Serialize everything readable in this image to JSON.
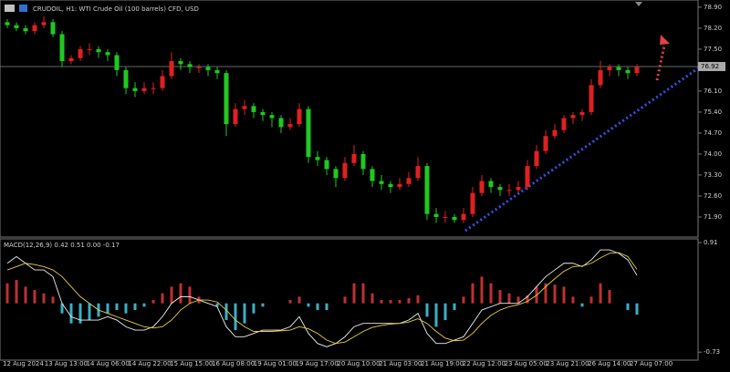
{
  "chart_data": {
    "type": "candlestick",
    "title": "CRUDOIL, H1: WTI Crude Oil (100 barrels) CFD, USD",
    "up_color": "#e02020",
    "down_color": "#20c820",
    "candles": [
      [
        78.4,
        78.5,
        78.2,
        78.3
      ],
      [
        78.3,
        78.4,
        78.1,
        78.2
      ],
      [
        78.2,
        78.3,
        78.0,
        78.1
      ],
      [
        78.1,
        78.4,
        78.0,
        78.3
      ],
      [
        78.3,
        78.6,
        78.2,
        78.4
      ],
      [
        78.4,
        78.5,
        77.9,
        78.0
      ],
      [
        78.0,
        78.1,
        76.9,
        77.1
      ],
      [
        77.1,
        77.3,
        77.0,
        77.2
      ],
      [
        77.2,
        77.6,
        77.1,
        77.5
      ],
      [
        77.5,
        77.7,
        77.3,
        77.5
      ],
      [
        77.5,
        77.6,
        77.2,
        77.4
      ],
      [
        77.4,
        77.5,
        77.1,
        77.3
      ],
      [
        77.3,
        77.4,
        76.6,
        76.8
      ],
      [
        76.8,
        76.9,
        76.0,
        76.2
      ],
      [
        76.2,
        76.4,
        75.9,
        76.1
      ],
      [
        76.1,
        76.4,
        76.0,
        76.2
      ],
      [
        76.2,
        76.4,
        76.0,
        76.2
      ],
      [
        76.2,
        76.8,
        76.1,
        76.6
      ],
      [
        76.6,
        77.4,
        76.5,
        77.1
      ],
      [
        77.1,
        77.2,
        76.8,
        77.0
      ],
      [
        77.0,
        77.1,
        76.7,
        76.9
      ],
      [
        76.9,
        77.0,
        76.7,
        76.9
      ],
      [
        76.9,
        77.0,
        76.6,
        76.8
      ],
      [
        76.8,
        76.9,
        76.5,
        76.7
      ],
      [
        76.7,
        76.8,
        74.6,
        75.0
      ],
      [
        75.0,
        75.7,
        74.9,
        75.5
      ],
      [
        75.5,
        75.8,
        75.3,
        75.6
      ],
      [
        75.6,
        75.7,
        75.2,
        75.4
      ],
      [
        75.4,
        75.5,
        75.1,
        75.3
      ],
      [
        75.3,
        75.4,
        74.9,
        75.2
      ],
      [
        75.2,
        75.3,
        74.7,
        74.9
      ],
      [
        74.9,
        75.2,
        74.8,
        75.0
      ],
      [
        75.0,
        75.7,
        74.9,
        75.5
      ],
      [
        75.5,
        75.6,
        73.7,
        73.9
      ],
      [
        73.9,
        74.1,
        73.6,
        73.8
      ],
      [
        73.8,
        73.9,
        73.3,
        73.5
      ],
      [
        73.5,
        73.6,
        72.9,
        73.2
      ],
      [
        73.2,
        73.9,
        73.1,
        73.7
      ],
      [
        73.7,
        74.3,
        73.6,
        74.0
      ],
      [
        74.0,
        74.1,
        73.3,
        73.5
      ],
      [
        73.5,
        73.6,
        72.9,
        73.1
      ],
      [
        73.1,
        73.3,
        72.8,
        73.0
      ],
      [
        73.0,
        73.1,
        72.7,
        72.9
      ],
      [
        72.9,
        73.2,
        72.8,
        73.0
      ],
      [
        73.0,
        73.4,
        72.9,
        73.2
      ],
      [
        73.2,
        73.9,
        73.1,
        73.6
      ],
      [
        73.6,
        73.7,
        71.8,
        72.0
      ],
      [
        72.0,
        72.2,
        71.7,
        71.9
      ],
      [
        71.9,
        72.1,
        71.7,
        71.9
      ],
      [
        71.9,
        72.0,
        71.7,
        71.8
      ],
      [
        71.8,
        72.2,
        71.7,
        72.0
      ],
      [
        72.0,
        72.9,
        71.9,
        72.7
      ],
      [
        72.7,
        73.3,
        72.6,
        73.1
      ],
      [
        73.1,
        73.2,
        72.7,
        72.9
      ],
      [
        72.9,
        73.0,
        72.6,
        72.8
      ],
      [
        72.8,
        73.0,
        72.6,
        72.8
      ],
      [
        72.8,
        73.1,
        72.7,
        72.9
      ],
      [
        72.9,
        73.8,
        72.8,
        73.6
      ],
      [
        73.6,
        74.3,
        73.5,
        74.1
      ],
      [
        74.1,
        74.8,
        74.0,
        74.6
      ],
      [
        74.6,
        75.0,
        74.5,
        74.8
      ],
      [
        74.8,
        75.3,
        74.7,
        75.2
      ],
      [
        75.2,
        75.4,
        75.0,
        75.3
      ],
      [
        75.3,
        75.5,
        75.1,
        75.4
      ],
      [
        75.4,
        76.5,
        75.3,
        76.3
      ],
      [
        76.3,
        77.1,
        76.2,
        76.8
      ],
      [
        76.8,
        77.0,
        76.6,
        76.9
      ],
      [
        76.9,
        77.0,
        76.6,
        76.8
      ],
      [
        76.8,
        76.9,
        76.5,
        76.7
      ],
      [
        76.7,
        77.0,
        76.6,
        76.9
      ]
    ],
    "ylim": [
      71.23,
      79.14
    ],
    "yticks": [
      {
        "value": 78.9,
        "label": "78.90"
      },
      {
        "value": 78.2,
        "label": "78.20"
      },
      {
        "value": 77.5,
        "label": "77.50"
      },
      {
        "value": 76.1,
        "label": "76.10"
      },
      {
        "value": 75.4,
        "label": "75.40"
      },
      {
        "value": 74.7,
        "label": "74.70"
      },
      {
        "value": 74.0,
        "label": "74.00"
      },
      {
        "value": 73.3,
        "label": "73.30"
      },
      {
        "value": 72.6,
        "label": "72.60"
      },
      {
        "value": 71.9,
        "label": "71.90"
      }
    ],
    "last_price": 76.92,
    "x_labels": [
      "12 Aug 2024",
      "13 Aug 13:00",
      "14 Aug 06:00",
      "14 Aug 22:00",
      "15 Aug 15:00",
      "16 Aug 08:00",
      "19 Aug 01:00",
      "19 Aug 17:00",
      "20 Aug 10:00",
      "21 Aug 03:00",
      "21 Aug 19:00",
      "22 Aug 12:00",
      "23 Aug 05:00",
      "23 Aug 21:00",
      "26 Aug 14:00",
      "27 Aug 07:00"
    ],
    "macd": {
      "type": "macd",
      "title": "MACD(12,26,9) 0.42 0.51 0.00 -0.17",
      "ylim": [
        -0.85,
        0.965
      ],
      "yticks": [
        0.91,
        -0.73
      ],
      "histogram": {
        "pos_color": "#c03030",
        "neg_color": "#3aaec8",
        "values": [
          0.3,
          0.35,
          0.25,
          0.2,
          0.15,
          0.1,
          -0.15,
          -0.3,
          -0.3,
          -0.25,
          -0.2,
          -0.15,
          -0.1,
          -0.15,
          -0.1,
          -0.05,
          0.05,
          0.15,
          0.25,
          0.3,
          0.25,
          0.1,
          0.0,
          -0.05,
          -0.25,
          -0.4,
          -0.3,
          -0.15,
          -0.05,
          0.0,
          0.0,
          0.05,
          0.1,
          -0.05,
          -0.1,
          -0.1,
          0.0,
          0.1,
          0.3,
          0.3,
          0.15,
          0.05,
          0.05,
          0.05,
          0.08,
          0.12,
          -0.2,
          -0.35,
          -0.25,
          -0.1,
          0.1,
          0.3,
          0.4,
          0.3,
          0.2,
          0.15,
          0.1,
          0.12,
          0.25,
          0.3,
          0.28,
          0.25,
          0.1,
          -0.05,
          0.1,
          0.3,
          0.2,
          0.0,
          -0.1,
          -0.17
        ]
      },
      "main": {
        "color": "#f0f0f0",
        "values": [
          0.6,
          0.7,
          0.6,
          0.5,
          0.5,
          0.4,
          0.0,
          -0.2,
          -0.25,
          -0.25,
          -0.25,
          -0.2,
          -0.25,
          -0.35,
          -0.4,
          -0.4,
          -0.35,
          -0.2,
          0.0,
          0.1,
          0.1,
          0.05,
          0.0,
          -0.05,
          -0.35,
          -0.5,
          -0.5,
          -0.45,
          -0.4,
          -0.4,
          -0.4,
          -0.35,
          -0.2,
          -0.45,
          -0.6,
          -0.65,
          -0.6,
          -0.5,
          -0.35,
          -0.3,
          -0.3,
          -0.3,
          -0.3,
          -0.3,
          -0.25,
          -0.15,
          -0.45,
          -0.6,
          -0.6,
          -0.55,
          -0.5,
          -0.3,
          -0.1,
          -0.05,
          0.0,
          0.0,
          0.0,
          0.1,
          0.25,
          0.4,
          0.5,
          0.6,
          0.6,
          0.55,
          0.65,
          0.8,
          0.8,
          0.75,
          0.65,
          0.42
        ]
      },
      "signal": {
        "color": "#e8d040",
        "values": [
          0.5,
          0.55,
          0.6,
          0.58,
          0.55,
          0.5,
          0.4,
          0.25,
          0.1,
          0.0,
          -0.1,
          -0.15,
          -0.2,
          -0.25,
          -0.3,
          -0.35,
          -0.37,
          -0.35,
          -0.25,
          -0.1,
          0.0,
          0.05,
          0.05,
          0.02,
          -0.1,
          -0.25,
          -0.35,
          -0.42,
          -0.42,
          -0.42,
          -0.41,
          -0.4,
          -0.35,
          -0.38,
          -0.45,
          -0.55,
          -0.6,
          -0.58,
          -0.5,
          -0.42,
          -0.36,
          -0.33,
          -0.31,
          -0.3,
          -0.28,
          -0.23,
          -0.3,
          -0.42,
          -0.52,
          -0.56,
          -0.55,
          -0.45,
          -0.3,
          -0.18,
          -0.1,
          -0.05,
          -0.02,
          0.03,
          0.12,
          0.25,
          0.37,
          0.48,
          0.55,
          0.56,
          0.6,
          0.68,
          0.75,
          0.76,
          0.7,
          0.51
        ]
      }
    }
  }
}
